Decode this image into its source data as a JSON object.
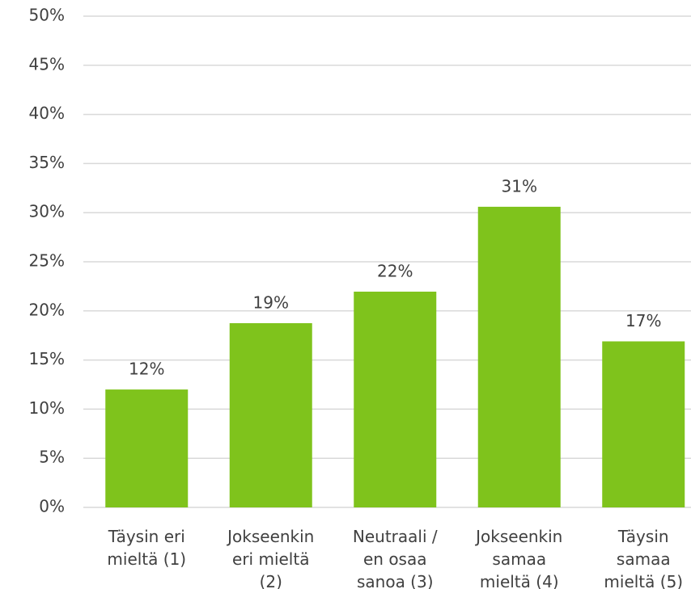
{
  "chart_data": {
    "type": "bar",
    "categories": [
      "Täysin eri\nmieltä (1)",
      "Jokseenkin\neri mieltä\n(2)",
      "Neutraali /\nen osaa\nsanoa (3)",
      "Jokseenkin\nsamaa\nmieltä (4)",
      "Täysin\nsamaa\nmieltä (5)"
    ],
    "values": [
      12.0,
      18.75,
      21.96,
      30.6,
      16.9
    ],
    "value_labels": [
      "12%",
      "19%",
      "22%",
      "31%",
      "17%"
    ],
    "color": "#7fc31c",
    "ylim": [
      0,
      50
    ],
    "yticks": [
      {
        "value": 0,
        "label": "0%"
      },
      {
        "value": 5,
        "label": "5%"
      },
      {
        "value": 10,
        "label": "10%"
      },
      {
        "value": 15,
        "label": "15%"
      },
      {
        "value": 20,
        "label": "20%"
      },
      {
        "value": 25,
        "label": "25%"
      },
      {
        "value": 30,
        "label": "30%"
      },
      {
        "value": 35,
        "label": "35%"
      },
      {
        "value": 40,
        "label": "40%"
      },
      {
        "value": 45,
        "label": "45%"
      },
      {
        "value": 50,
        "label": "50%"
      }
    ],
    "grid": true
  }
}
